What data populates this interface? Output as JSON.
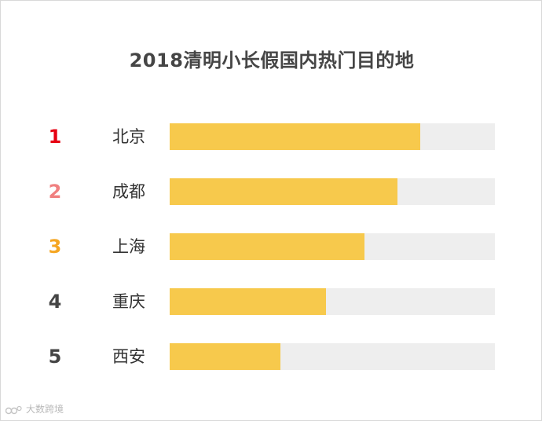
{
  "chart_data": {
    "type": "bar",
    "orientation": "horizontal",
    "title": "2018清明小长假国内热门目的地",
    "ranks": [
      "1",
      "2",
      "3",
      "4",
      "5"
    ],
    "categories": [
      "北京",
      "成都",
      "上海",
      "重庆",
      "西安"
    ],
    "values": [
      0.77,
      0.7,
      0.6,
      0.48,
      0.34
    ],
    "value_unit": "fraction of track (no scale printed)",
    "rank_colors": [
      "#e60012",
      "#f08080",
      "#f5a623",
      "#454545",
      "#454545"
    ],
    "bar_color": "#f7c94c",
    "track_color": "#eeeeee",
    "xlabel": "",
    "ylabel": "",
    "grid": false,
    "legend": "none"
  },
  "watermark": {
    "text": "大数跨境"
  }
}
